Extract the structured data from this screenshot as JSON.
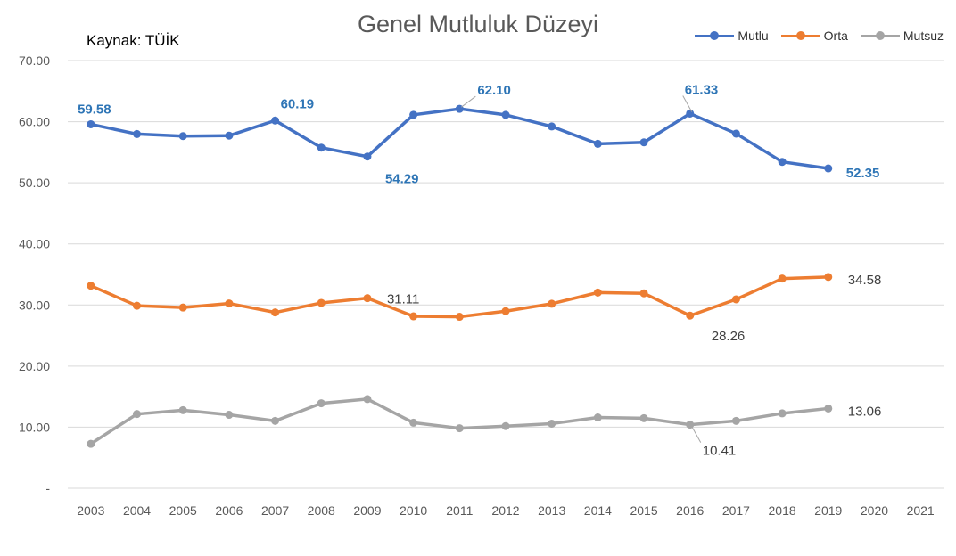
{
  "chart_data": {
    "type": "line",
    "title": "Genel Mutluluk Düzeyi",
    "source": "Kaynak: TÜİK",
    "categories": [
      "2003",
      "2004",
      "2005",
      "2006",
      "2007",
      "2008",
      "2009",
      "2010",
      "2011",
      "2012",
      "2013",
      "2014",
      "2015",
      "2016",
      "2017",
      "2018",
      "2019",
      "2020",
      "2021"
    ],
    "y_ticks": [
      "-",
      "10.00",
      "20.00",
      "30.00",
      "40.00",
      "50.00",
      "60.00",
      "70.00"
    ],
    "ylim": [
      0,
      70
    ],
    "grid": true,
    "legend_position": "top-right",
    "series": [
      {
        "name": "Mutlu",
        "color": "#4472C4",
        "values": [
          59.58,
          57.98,
          57.64,
          57.72,
          60.19,
          55.75,
          54.29,
          61.13,
          62.1,
          61.12,
          59.22,
          56.38,
          56.62,
          61.33,
          58.05,
          53.42,
          52.35,
          null,
          null
        ],
        "labels": [
          {
            "index": 0,
            "text": "59.58"
          },
          {
            "index": 4,
            "text": "60.19"
          },
          {
            "index": 6,
            "text": "54.29"
          },
          {
            "index": 8,
            "text": "62.10"
          },
          {
            "index": 13,
            "text": "61.33"
          },
          {
            "index": 16,
            "text": "52.35"
          }
        ]
      },
      {
        "name": "Orta",
        "color": "#ED7D31",
        "values": [
          33.15,
          29.87,
          29.58,
          30.25,
          28.78,
          30.34,
          31.11,
          28.14,
          28.07,
          28.99,
          30.2,
          32.03,
          31.91,
          28.26,
          30.92,
          34.32,
          34.58,
          null,
          null
        ],
        "labels": [
          {
            "index": 6,
            "text": "31.11"
          },
          {
            "index": 13,
            "text": "28.26"
          },
          {
            "index": 16,
            "text": "34.58"
          }
        ]
      },
      {
        "name": "Mutsuz",
        "color": "#A5A5A5",
        "values": [
          7.27,
          12.15,
          12.78,
          12.03,
          11.03,
          13.91,
          14.6,
          10.73,
          9.83,
          10.18,
          10.58,
          11.59,
          11.47,
          10.41,
          11.03,
          12.26,
          13.06,
          null,
          null
        ],
        "labels": [
          {
            "index": 13,
            "text": "10.41"
          },
          {
            "index": 16,
            "text": "13.06"
          }
        ]
      }
    ]
  }
}
